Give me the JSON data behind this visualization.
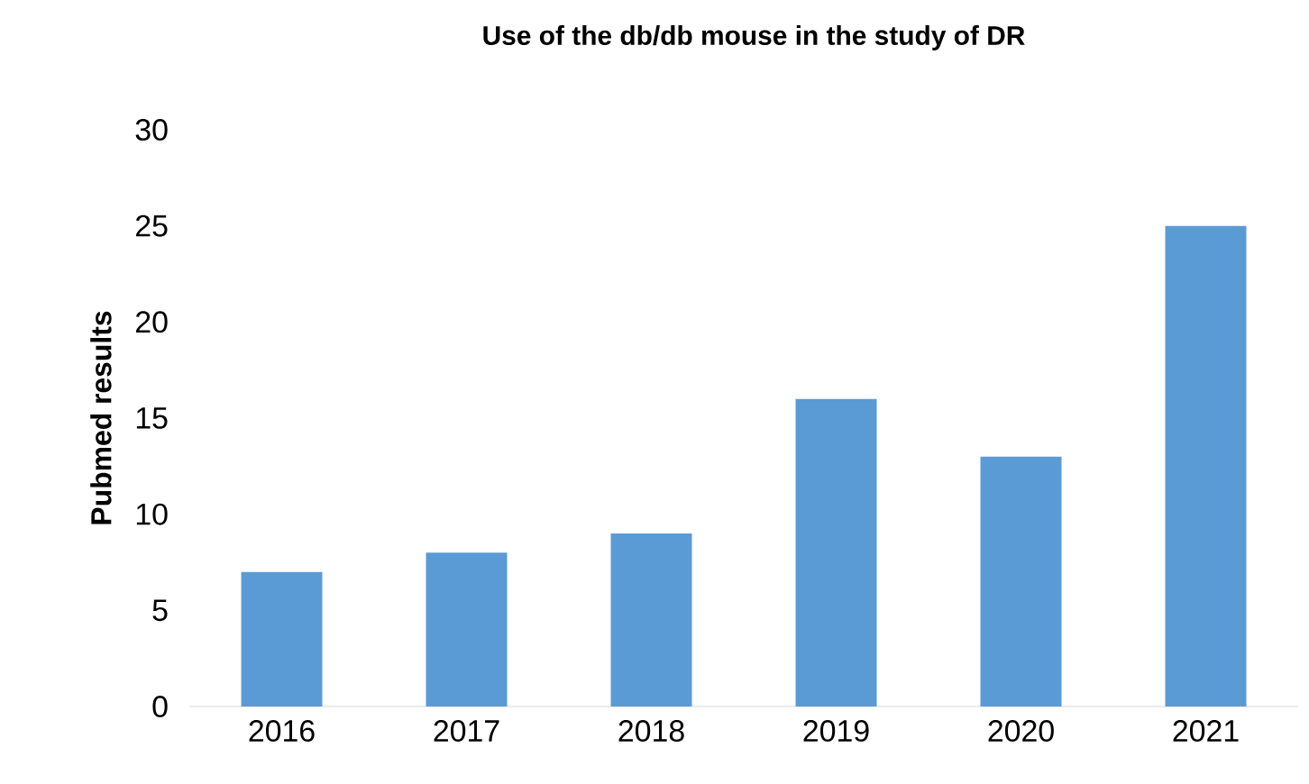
{
  "chart_data": {
    "type": "bar",
    "title": "Use of the db/db mouse in the study of DR",
    "ylabel": "Pubmed results",
    "categories": [
      "2016",
      "2017",
      "2018",
      "2019",
      "2020",
      "2021"
    ],
    "values": [
      7,
      8,
      9,
      16,
      13,
      25
    ],
    "color": "#5b9bd5",
    "ylim": [
      0,
      30
    ],
    "yticks": [
      0,
      5,
      10,
      15,
      20,
      25,
      30
    ]
  }
}
